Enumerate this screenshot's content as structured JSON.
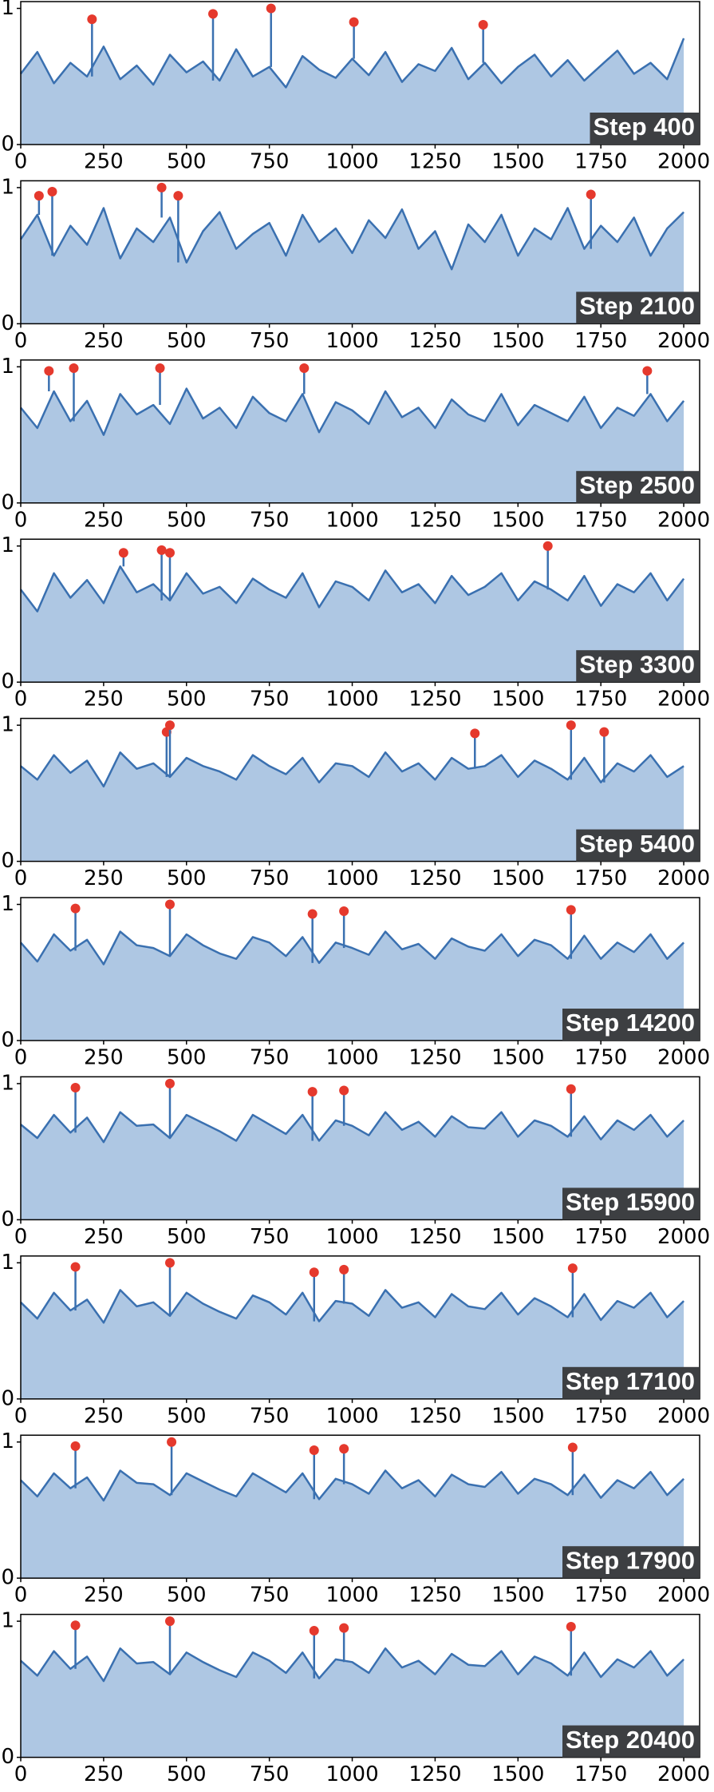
{
  "chart_data": [
    {
      "type": "area",
      "label": "Step 400",
      "color": "#3a70b0",
      "fill": "#aec7e3",
      "highlight_color": "#e5392d",
      "x": [
        0,
        50,
        100,
        150,
        200,
        250,
        300,
        350,
        400,
        450,
        500,
        550,
        600,
        650,
        700,
        750,
        800,
        850,
        900,
        950,
        1000,
        1050,
        1100,
        1150,
        1200,
        1250,
        1300,
        1350,
        1400,
        1450,
        1500,
        1550,
        1600,
        1650,
        1700,
        1750,
        1800,
        1850,
        1900,
        1950,
        2000
      ],
      "values": [
        0.52,
        0.68,
        0.45,
        0.6,
        0.5,
        0.72,
        0.48,
        0.58,
        0.44,
        0.66,
        0.53,
        0.61,
        0.47,
        0.7,
        0.5,
        0.57,
        0.42,
        0.65,
        0.55,
        0.49,
        0.63,
        0.51,
        0.68,
        0.46,
        0.59,
        0.54,
        0.71,
        0.48,
        0.6,
        0.45,
        0.57,
        0.66,
        0.5,
        0.62,
        0.47,
        0.58,
        0.69,
        0.52,
        0.6,
        0.48,
        0.78
      ],
      "highlight_x": [
        215,
        580,
        755,
        1005,
        1395
      ],
      "highlight_y": [
        0.92,
        0.96,
        1.0,
        0.9,
        0.88
      ],
      "xlim": [
        0,
        2048
      ],
      "xticks": [
        0,
        250,
        500,
        750,
        1000,
        1250,
        1500,
        1750,
        2000
      ],
      "ylim": [
        0,
        1.05
      ],
      "yticks": [
        0,
        1
      ]
    },
    {
      "type": "area",
      "label": "Step 2100",
      "color": "#3a70b0",
      "fill": "#aec7e3",
      "highlight_color": "#e5392d",
      "x": [
        0,
        50,
        100,
        150,
        200,
        250,
        300,
        350,
        400,
        450,
        500,
        550,
        600,
        650,
        700,
        750,
        800,
        850,
        900,
        950,
        1000,
        1050,
        1100,
        1150,
        1200,
        1250,
        1300,
        1350,
        1400,
        1450,
        1500,
        1550,
        1600,
        1650,
        1700,
        1750,
        1800,
        1850,
        1900,
        1950,
        2000
      ],
      "values": [
        0.62,
        0.8,
        0.5,
        0.72,
        0.58,
        0.85,
        0.48,
        0.7,
        0.6,
        0.78,
        0.45,
        0.68,
        0.82,
        0.55,
        0.66,
        0.74,
        0.5,
        0.8,
        0.6,
        0.7,
        0.52,
        0.76,
        0.63,
        0.84,
        0.55,
        0.68,
        0.4,
        0.73,
        0.6,
        0.8,
        0.5,
        0.7,
        0.62,
        0.85,
        0.55,
        0.72,
        0.6,
        0.78,
        0.5,
        0.7,
        0.82
      ],
      "highlight_x": [
        55,
        95,
        425,
        475,
        1720
      ],
      "highlight_y": [
        0.94,
        0.97,
        1.0,
        0.94,
        0.95
      ],
      "xlim": [
        0,
        2048
      ],
      "xticks": [
        0,
        250,
        500,
        750,
        1000,
        1250,
        1500,
        1750,
        2000
      ],
      "ylim": [
        0,
        1.05
      ],
      "yticks": [
        0,
        1
      ]
    },
    {
      "type": "area",
      "label": "Step 2500",
      "color": "#3a70b0",
      "fill": "#aec7e3",
      "highlight_color": "#e5392d",
      "x": [
        0,
        50,
        100,
        150,
        200,
        250,
        300,
        350,
        400,
        450,
        500,
        550,
        600,
        650,
        700,
        750,
        800,
        850,
        900,
        950,
        1000,
        1050,
        1100,
        1150,
        1200,
        1250,
        1300,
        1350,
        1400,
        1450,
        1500,
        1550,
        1600,
        1650,
        1700,
        1750,
        1800,
        1850,
        1900,
        1950,
        2000
      ],
      "values": [
        0.7,
        0.55,
        0.82,
        0.6,
        0.75,
        0.5,
        0.8,
        0.65,
        0.72,
        0.58,
        0.84,
        0.62,
        0.7,
        0.55,
        0.78,
        0.66,
        0.6,
        0.8,
        0.52,
        0.74,
        0.68,
        0.58,
        0.82,
        0.63,
        0.7,
        0.55,
        0.76,
        0.65,
        0.6,
        0.8,
        0.57,
        0.72,
        0.66,
        0.6,
        0.78,
        0.55,
        0.7,
        0.64,
        0.8,
        0.6,
        0.75
      ],
      "highlight_x": [
        85,
        160,
        420,
        855,
        1890
      ],
      "highlight_y": [
        0.97,
        0.99,
        0.99,
        0.99,
        0.97
      ],
      "xlim": [
        0,
        2048
      ],
      "xticks": [
        0,
        250,
        500,
        750,
        1000,
        1250,
        1500,
        1750,
        2000
      ],
      "ylim": [
        0,
        1.05
      ],
      "yticks": [
        0,
        1
      ]
    },
    {
      "type": "area",
      "label": "Step 3300",
      "color": "#3a70b0",
      "fill": "#aec7e3",
      "highlight_color": "#e5392d",
      "x": [
        0,
        50,
        100,
        150,
        200,
        250,
        300,
        350,
        400,
        450,
        500,
        550,
        600,
        650,
        700,
        750,
        800,
        850,
        900,
        950,
        1000,
        1050,
        1100,
        1150,
        1200,
        1250,
        1300,
        1350,
        1400,
        1450,
        1500,
        1550,
        1600,
        1650,
        1700,
        1750,
        1800,
        1850,
        1900,
        1950,
        2000
      ],
      "values": [
        0.68,
        0.52,
        0.8,
        0.62,
        0.75,
        0.58,
        0.85,
        0.66,
        0.72,
        0.6,
        0.8,
        0.65,
        0.7,
        0.58,
        0.76,
        0.68,
        0.62,
        0.8,
        0.55,
        0.74,
        0.7,
        0.6,
        0.82,
        0.66,
        0.72,
        0.58,
        0.78,
        0.64,
        0.7,
        0.8,
        0.6,
        0.74,
        0.68,
        0.6,
        0.78,
        0.56,
        0.72,
        0.66,
        0.8,
        0.6,
        0.76
      ],
      "highlight_x": [
        310,
        425,
        450,
        1590
      ],
      "highlight_y": [
        0.95,
        0.97,
        0.95,
        1.0
      ],
      "xlim": [
        0,
        2048
      ],
      "xticks": [
        0,
        250,
        500,
        750,
        1000,
        1250,
        1500,
        1750,
        2000
      ],
      "ylim": [
        0,
        1.05
      ],
      "yticks": [
        0,
        1
      ]
    },
    {
      "type": "area",
      "label": "Step 5400",
      "color": "#3a70b0",
      "fill": "#aec7e3",
      "highlight_color": "#e5392d",
      "x": [
        0,
        50,
        100,
        150,
        200,
        250,
        300,
        350,
        400,
        450,
        500,
        550,
        600,
        650,
        700,
        750,
        800,
        850,
        900,
        950,
        1000,
        1050,
        1100,
        1150,
        1200,
        1250,
        1300,
        1350,
        1400,
        1450,
        1500,
        1550,
        1600,
        1650,
        1700,
        1750,
        1800,
        1850,
        1900,
        1950,
        2000
      ],
      "values": [
        0.7,
        0.6,
        0.78,
        0.65,
        0.74,
        0.55,
        0.8,
        0.68,
        0.72,
        0.62,
        0.76,
        0.7,
        0.66,
        0.6,
        0.78,
        0.7,
        0.64,
        0.76,
        0.58,
        0.72,
        0.7,
        0.62,
        0.8,
        0.66,
        0.72,
        0.6,
        0.76,
        0.68,
        0.7,
        0.78,
        0.62,
        0.74,
        0.68,
        0.6,
        0.76,
        0.58,
        0.72,
        0.66,
        0.78,
        0.62,
        0.7
      ],
      "highlight_x": [
        440,
        450,
        1370,
        1660,
        1760
      ],
      "highlight_y": [
        0.95,
        1.0,
        0.94,
        1.0,
        0.95
      ],
      "xlim": [
        0,
        2048
      ],
      "xticks": [
        0,
        250,
        500,
        750,
        1000,
        1250,
        1500,
        1750,
        2000
      ],
      "ylim": [
        0,
        1.05
      ],
      "yticks": [
        0,
        1
      ]
    },
    {
      "type": "area",
      "label": "Step 14200",
      "color": "#3a70b0",
      "fill": "#aec7e3",
      "highlight_color": "#e5392d",
      "x": [
        0,
        50,
        100,
        150,
        200,
        250,
        300,
        350,
        400,
        450,
        500,
        550,
        600,
        650,
        700,
        750,
        800,
        850,
        900,
        950,
        1000,
        1050,
        1100,
        1150,
        1200,
        1250,
        1300,
        1350,
        1400,
        1450,
        1500,
        1550,
        1600,
        1650,
        1700,
        1750,
        1800,
        1850,
        1900,
        1950,
        2000
      ],
      "values": [
        0.72,
        0.58,
        0.78,
        0.66,
        0.74,
        0.56,
        0.8,
        0.7,
        0.68,
        0.62,
        0.78,
        0.7,
        0.64,
        0.6,
        0.76,
        0.72,
        0.62,
        0.76,
        0.57,
        0.72,
        0.68,
        0.63,
        0.8,
        0.67,
        0.71,
        0.6,
        0.75,
        0.69,
        0.66,
        0.78,
        0.62,
        0.74,
        0.7,
        0.6,
        0.77,
        0.6,
        0.72,
        0.65,
        0.78,
        0.6,
        0.72
      ],
      "highlight_x": [
        165,
        450,
        880,
        975,
        1660
      ],
      "highlight_y": [
        0.97,
        1.0,
        0.93,
        0.95,
        0.96
      ],
      "xlim": [
        0,
        2048
      ],
      "xticks": [
        0,
        250,
        500,
        750,
        1000,
        1250,
        1500,
        1750,
        2000
      ],
      "ylim": [
        0,
        1.05
      ],
      "yticks": [
        0,
        1
      ]
    },
    {
      "type": "area",
      "label": "Step 15900",
      "color": "#3a70b0",
      "fill": "#aec7e3",
      "highlight_color": "#e5392d",
      "x": [
        0,
        50,
        100,
        150,
        200,
        250,
        300,
        350,
        400,
        450,
        500,
        550,
        600,
        650,
        700,
        750,
        800,
        850,
        900,
        950,
        1000,
        1050,
        1100,
        1150,
        1200,
        1250,
        1300,
        1350,
        1400,
        1450,
        1500,
        1550,
        1600,
        1650,
        1700,
        1750,
        1800,
        1850,
        1900,
        1950,
        2000
      ],
      "values": [
        0.7,
        0.6,
        0.77,
        0.64,
        0.75,
        0.57,
        0.79,
        0.69,
        0.7,
        0.6,
        0.77,
        0.71,
        0.65,
        0.58,
        0.77,
        0.7,
        0.63,
        0.77,
        0.58,
        0.73,
        0.69,
        0.62,
        0.79,
        0.66,
        0.72,
        0.61,
        0.76,
        0.68,
        0.67,
        0.79,
        0.61,
        0.73,
        0.69,
        0.61,
        0.76,
        0.59,
        0.73,
        0.66,
        0.77,
        0.61,
        0.73
      ],
      "highlight_x": [
        165,
        450,
        880,
        975,
        1660
      ],
      "highlight_y": [
        0.97,
        1.0,
        0.94,
        0.95,
        0.96
      ],
      "xlim": [
        0,
        2048
      ],
      "xticks": [
        0,
        250,
        500,
        750,
        1000,
        1250,
        1500,
        1750,
        2000
      ],
      "ylim": [
        0,
        1.05
      ],
      "yticks": [
        0,
        1
      ]
    },
    {
      "type": "area",
      "label": "Step 17100",
      "color": "#3a70b0",
      "fill": "#aec7e3",
      "highlight_color": "#e5392d",
      "x": [
        0,
        50,
        100,
        150,
        200,
        250,
        300,
        350,
        400,
        450,
        500,
        550,
        600,
        650,
        700,
        750,
        800,
        850,
        900,
        950,
        1000,
        1050,
        1100,
        1150,
        1200,
        1250,
        1300,
        1350,
        1400,
        1450,
        1500,
        1550,
        1600,
        1650,
        1700,
        1750,
        1800,
        1850,
        1900,
        1950,
        2000
      ],
      "values": [
        0.71,
        0.59,
        0.78,
        0.65,
        0.73,
        0.56,
        0.8,
        0.68,
        0.71,
        0.61,
        0.78,
        0.7,
        0.64,
        0.59,
        0.76,
        0.71,
        0.62,
        0.78,
        0.57,
        0.72,
        0.7,
        0.61,
        0.8,
        0.67,
        0.71,
        0.6,
        0.77,
        0.68,
        0.66,
        0.78,
        0.62,
        0.74,
        0.68,
        0.6,
        0.77,
        0.58,
        0.72,
        0.67,
        0.78,
        0.6,
        0.72
      ],
      "highlight_x": [
        165,
        450,
        885,
        975,
        1665
      ],
      "highlight_y": [
        0.97,
        1.0,
        0.93,
        0.95,
        0.96
      ],
      "xlim": [
        0,
        2048
      ],
      "xticks": [
        0,
        250,
        500,
        750,
        1000,
        1250,
        1500,
        1750,
        2000
      ],
      "ylim": [
        0,
        1.05
      ],
      "yticks": [
        0,
        1
      ]
    },
    {
      "type": "area",
      "label": "Step 17900",
      "color": "#3a70b0",
      "fill": "#aec7e3",
      "highlight_color": "#e5392d",
      "x": [
        0,
        50,
        100,
        150,
        200,
        250,
        300,
        350,
        400,
        450,
        500,
        550,
        600,
        650,
        700,
        750,
        800,
        850,
        900,
        950,
        1000,
        1050,
        1100,
        1150,
        1200,
        1250,
        1300,
        1350,
        1400,
        1450,
        1500,
        1550,
        1600,
        1650,
        1700,
        1750,
        1800,
        1850,
        1900,
        1950,
        2000
      ],
      "values": [
        0.72,
        0.6,
        0.77,
        0.66,
        0.74,
        0.57,
        0.79,
        0.7,
        0.69,
        0.61,
        0.77,
        0.71,
        0.65,
        0.6,
        0.77,
        0.7,
        0.63,
        0.77,
        0.58,
        0.73,
        0.69,
        0.62,
        0.79,
        0.66,
        0.72,
        0.6,
        0.76,
        0.69,
        0.67,
        0.78,
        0.62,
        0.73,
        0.69,
        0.61,
        0.76,
        0.59,
        0.72,
        0.66,
        0.78,
        0.61,
        0.73
      ],
      "highlight_x": [
        165,
        455,
        885,
        975,
        1665
      ],
      "highlight_y": [
        0.97,
        1.0,
        0.94,
        0.95,
        0.96
      ],
      "xlim": [
        0,
        2048
      ],
      "xticks": [
        0,
        250,
        500,
        750,
        1000,
        1250,
        1500,
        1750,
        2000
      ],
      "ylim": [
        0,
        1.05
      ],
      "yticks": [
        0,
        1
      ]
    },
    {
      "type": "area",
      "label": "Step 20400",
      "color": "#3a70b0",
      "fill": "#aec7e3",
      "highlight_color": "#e5392d",
      "x": [
        0,
        50,
        100,
        150,
        200,
        250,
        300,
        350,
        400,
        450,
        500,
        550,
        600,
        650,
        700,
        750,
        800,
        850,
        900,
        950,
        1000,
        1050,
        1100,
        1150,
        1200,
        1250,
        1300,
        1350,
        1400,
        1450,
        1500,
        1550,
        1600,
        1650,
        1700,
        1750,
        1800,
        1850,
        1900,
        1950,
        2000
      ],
      "values": [
        0.71,
        0.6,
        0.78,
        0.65,
        0.74,
        0.56,
        0.8,
        0.69,
        0.7,
        0.61,
        0.77,
        0.7,
        0.64,
        0.59,
        0.77,
        0.71,
        0.62,
        0.77,
        0.58,
        0.72,
        0.7,
        0.62,
        0.8,
        0.66,
        0.71,
        0.61,
        0.76,
        0.68,
        0.67,
        0.78,
        0.61,
        0.74,
        0.69,
        0.6,
        0.77,
        0.59,
        0.72,
        0.66,
        0.78,
        0.6,
        0.72
      ],
      "highlight_x": [
        165,
        450,
        885,
        975,
        1660
      ],
      "highlight_y": [
        0.97,
        1.0,
        0.93,
        0.95,
        0.96
      ],
      "xlim": [
        0,
        2048
      ],
      "xticks": [
        0,
        250,
        500,
        750,
        1000,
        1250,
        1500,
        1750,
        2000
      ],
      "ylim": [
        0,
        1.05
      ],
      "yticks": [
        0,
        1
      ]
    }
  ]
}
